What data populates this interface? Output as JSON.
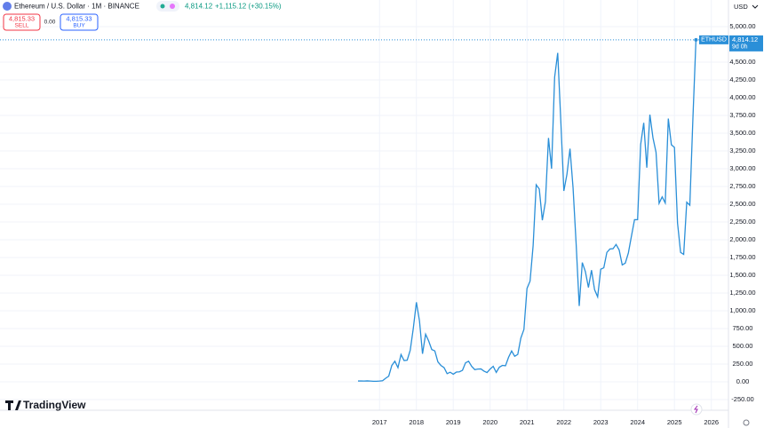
{
  "chart_data": {
    "type": "line",
    "title": "Ethereum / U.S. Dollar · 1M · BINANCE",
    "last_price": {
      "value": 4814.12,
      "label": "4,814.12"
    },
    "change": "+1,115.12 (+30.15%)",
    "sell": {
      "price": "4,815.33",
      "label": "SELL"
    },
    "spread": "0.00",
    "buy": {
      "price": "4,815.33",
      "label": "BUY"
    },
    "currency": "USD",
    "symbol": "ETHUSD",
    "countdown": "9d 0h",
    "brand": "TradingView",
    "categories": [
      null,
      null,
      null,
      null,
      null,
      null,
      null,
      "2017",
      null,
      null,
      null,
      null,
      null,
      null,
      null,
      null,
      null,
      null,
      null,
      "2018",
      null,
      null,
      null,
      null,
      null,
      null,
      null,
      null,
      null,
      null,
      null,
      "2019",
      null,
      null,
      null,
      null,
      null,
      null,
      null,
      null,
      null,
      null,
      null,
      "2020",
      null,
      null,
      null,
      null,
      null,
      null,
      null,
      null,
      null,
      null,
      null,
      "2021",
      null,
      null,
      null,
      null,
      null,
      null,
      null,
      null,
      null,
      null,
      null,
      "2022",
      null,
      null,
      null,
      null,
      null,
      null,
      null,
      null,
      null,
      null,
      null,
      "2023",
      null,
      null,
      null,
      null,
      null,
      null,
      null,
      null,
      null,
      null,
      null,
      "2024",
      null,
      null,
      null,
      null,
      null,
      null,
      null,
      null,
      null,
      null,
      null,
      "2025",
      null,
      null,
      null,
      null,
      null,
      null,
      null,
      null,
      null,
      null,
      null,
      "2026"
    ],
    "series": [
      {
        "name": "ETHUSD",
        "color": "#2962ff",
        "values": [
          12,
          12,
          11,
          13,
          11,
          8,
          8,
          10.7,
          16,
          50,
          80,
          230,
          290,
          200,
          385,
          300,
          305,
          445,
          755,
          1120,
          860,
          395,
          670,
          575,
          455,
          435,
          280,
          230,
          200,
          115,
          135,
          107,
          137,
          141,
          162,
          268,
          290,
          218,
          172,
          180,
          182,
          151,
          130,
          180,
          218,
          133,
          206,
          231,
          226,
          345,
          434,
          360,
          386,
          616,
          737,
          1314,
          1417,
          1918,
          2773,
          2714,
          2275,
          2536,
          3433,
          3001,
          4288,
          4631,
          3680,
          2688,
          2920,
          3282,
          2727,
          1942,
          1067,
          1679,
          1553,
          1328,
          1572,
          1296,
          1196,
          1585,
          1605,
          1822,
          1870,
          1874,
          1934,
          1856,
          1646,
          1671,
          1815,
          2052,
          2282,
          2283,
          3340,
          3646,
          3014,
          3761,
          3436,
          3232,
          2513,
          2603,
          2518,
          3706,
          3337,
          3300,
          2237,
          1822,
          1794,
          2528,
          2486,
          3700,
          4814.12,
          null,
          null,
          null,
          null,
          null
        ]
      }
    ],
    "ylim": [
      -400,
      5125
    ],
    "yticks": [
      {
        "value": -250,
        "label": "-250.00"
      },
      {
        "value": 0,
        "label": "0.00"
      },
      {
        "value": 250,
        "label": "250.00"
      },
      {
        "value": 500,
        "label": "500.00"
      },
      {
        "value": 750,
        "label": "750.00"
      },
      {
        "value": 1000,
        "label": "1,000.00"
      },
      {
        "value": 1250,
        "label": "1,250.00"
      },
      {
        "value": 1500,
        "label": "1,500.00"
      },
      {
        "value": 1750,
        "label": "1,750.00"
      },
      {
        "value": 2000,
        "label": "2,000.00"
      },
      {
        "value": 2250,
        "label": "2,250.00"
      },
      {
        "value": 2500,
        "label": "2,500.00"
      },
      {
        "value": 2750,
        "label": "2,750.00"
      },
      {
        "value": 3000,
        "label": "3,000.00"
      },
      {
        "value": 3250,
        "label": "3,250.00"
      },
      {
        "value": 3500,
        "label": "3,500.00"
      },
      {
        "value": 3750,
        "label": "3,750.00"
      },
      {
        "value": 4000,
        "label": "4,000.00"
      },
      {
        "value": 4250,
        "label": "4,250.00"
      },
      {
        "value": 4500,
        "label": "4,500.00"
      },
      {
        "value": 5000,
        "label": "5,000.00"
      }
    ],
    "grid": true
  }
}
